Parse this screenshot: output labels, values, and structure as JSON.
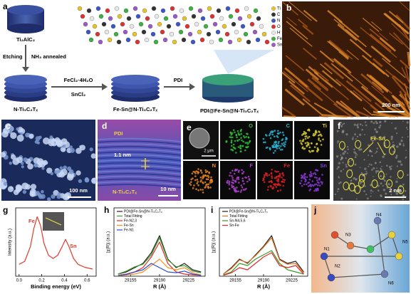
{
  "a": {
    "label": "a",
    "precursor": "Ti₂AlC₂",
    "step1": [
      "Etching",
      "NH₃ annealed"
    ],
    "intermediate": "N-Ti₃C₂Tₓ",
    "step2": [
      "FeCl₂·4H₂O",
      "SnCl₂"
    ],
    "product": "Fe-Sn@N-Ti₃C₂Tₓ",
    "step3": "PDI",
    "final": "PDI@Fe-Sn@N-Ti₃C₂Tₓ",
    "legend": [
      {
        "name": "Ti",
        "color": "#e8c22a"
      },
      {
        "name": "C",
        "color": "#333333"
      },
      {
        "name": "N",
        "color": "#3a56c8"
      },
      {
        "name": "O",
        "color": "#e03030"
      },
      {
        "name": "H",
        "color": "#e8e8e8"
      },
      {
        "name": "Fe",
        "color": "#3cb043"
      },
      {
        "name": "Sn",
        "color": "#9b59c6"
      }
    ]
  },
  "b": {
    "label": "b",
    "scale_bar": "200 nm"
  },
  "c": {
    "label": "c",
    "scale_bar": "100 nm"
  },
  "d": {
    "label": "d",
    "top_layer": "PDI",
    "spacing": "1.1 nm",
    "bottom_layer": "N-Ti₃C₂Tₓ",
    "scale_bar": "10 nm"
  },
  "e": {
    "label": "e",
    "scale_bar": "2 μm",
    "maps": [
      {
        "name": "O",
        "color": "#2fbf3a"
      },
      {
        "name": "C",
        "color": "#29b6d8"
      },
      {
        "name": "Ti",
        "color": "#d8d030"
      },
      {
        "name": "N",
        "color": "#f08a20"
      },
      {
        "name": "F",
        "color": "#b040d0"
      },
      {
        "name": "Fe",
        "color": "#e02020"
      },
      {
        "name": "Sn",
        "color": "#8a3ad8"
      }
    ]
  },
  "f": {
    "label": "f",
    "site": "Fe-Sn",
    "scale_bar": "2 nm"
  },
  "g": {
    "label": "g",
    "ylabel": "Intensity (a.u.)",
    "xlabel": "Binding energy (eV)",
    "peaks": [
      "Fe",
      "Sn"
    ],
    "xlim": [
      -0.03,
      0.68
    ],
    "ylim": [
      0,
      1.15
    ],
    "xticks": [
      {
        "value": 0,
        "label": "0.0"
      },
      {
        "value": 0.2,
        "label": "0.2"
      },
      {
        "value": 0.4,
        "label": "0.4"
      },
      {
        "value": 0.6,
        "label": "0.6"
      }
    ],
    "series": [
      {
        "color": "#e03a2a",
        "x": [
          0,
          0.05,
          0.1,
          0.13,
          0.16,
          0.19,
          0.22,
          0.26,
          0.3,
          0.34,
          0.38,
          0.41,
          0.44,
          0.48,
          0.52,
          0.58,
          0.65
        ],
        "values": [
          0.2,
          0.25,
          0.5,
          0.8,
          1.0,
          0.85,
          0.55,
          0.35,
          0.3,
          0.35,
          0.5,
          0.62,
          0.5,
          0.3,
          0.2,
          0.15,
          0.12
        ]
      }
    ]
  },
  "h": {
    "label": "h",
    "ylabel": "|χ(R)| (a.u.)",
    "xlabel": "R (Å)",
    "xlim": [
      29135,
      29245
    ],
    "ylim": [
      0,
      1.6
    ],
    "xticks": [
      29155,
      29190,
      29225
    ],
    "x": [
      29140,
      29150,
      29160,
      29170,
      29180,
      29190,
      29200,
      29210,
      29220,
      29230,
      29240
    ],
    "series": [
      {
        "name": "PDI@Fe-Sn@N-Ti₃C₂Tₓ",
        "color": "#222222",
        "values": [
          0.05,
          0.1,
          0.2,
          0.3,
          0.55,
          0.95,
          0.4,
          0.2,
          0.3,
          0.15,
          0.1
        ]
      },
      {
        "name": "Total Fitting",
        "color": "#3a9a2a",
        "values": [
          0.05,
          0.12,
          0.22,
          0.28,
          0.5,
          0.9,
          0.38,
          0.22,
          0.25,
          0.12,
          0.08
        ]
      },
      {
        "name": "Fe-N2,3",
        "color": "#e02a2a",
        "values": [
          0.02,
          0.05,
          0.1,
          0.2,
          0.45,
          0.8,
          0.3,
          0.1,
          0.05,
          0.03,
          0.02
        ]
      },
      {
        "name": "Fe-Sn",
        "color": "#f0901e",
        "values": [
          0.01,
          0.03,
          0.05,
          0.1,
          0.25,
          0.4,
          0.2,
          0.15,
          0.2,
          0.08,
          0.03
        ]
      },
      {
        "name": "Fe-N1",
        "color": "#2a4ad0",
        "values": [
          0.02,
          0.04,
          0.1,
          0.15,
          0.3,
          0.2,
          0.1,
          0.08,
          0.12,
          0.05,
          0.02
        ]
      }
    ]
  },
  "i": {
    "label": "i",
    "ylabel": "|χ(R)| (a.u.)",
    "xlabel": "R (Å)",
    "xlim": [
      29135,
      29245
    ],
    "ylim": [
      0,
      1.6
    ],
    "xticks": [
      29155,
      29190,
      29225
    ],
    "x": [
      29140,
      29150,
      29160,
      29170,
      29180,
      29190,
      29200,
      29210,
      29220,
      29230,
      29240
    ],
    "series": [
      {
        "name": "PDI@Fe-Sn@N-Ti₃C₂Tₓ",
        "color": "#222222",
        "values": [
          0.05,
          0.2,
          0.4,
          0.3,
          0.5,
          0.7,
          0.95,
          0.4,
          0.3,
          0.35,
          0.1
        ]
      },
      {
        "name": "Total Fitting",
        "color": "#e07020",
        "values": [
          0.05,
          0.18,
          0.38,
          0.32,
          0.48,
          0.68,
          0.9,
          0.38,
          0.28,
          0.3,
          0.08
        ]
      },
      {
        "name": "Sn-N4,5,6",
        "color": "#3a9a2a",
        "values": [
          0.03,
          0.1,
          0.3,
          0.25,
          0.4,
          0.5,
          0.6,
          0.3,
          0.15,
          0.1,
          0.05
        ]
      },
      {
        "name": "Sn-Fe",
        "color": "#e02a2a",
        "values": [
          0.02,
          0.08,
          0.2,
          0.15,
          0.3,
          0.45,
          0.55,
          0.25,
          0.2,
          0.25,
          0.05
        ]
      }
    ]
  },
  "j": {
    "label": "j",
    "atoms": [
      "N1",
      "N2",
      "N3",
      "N4",
      "N5",
      "N6"
    ]
  }
}
